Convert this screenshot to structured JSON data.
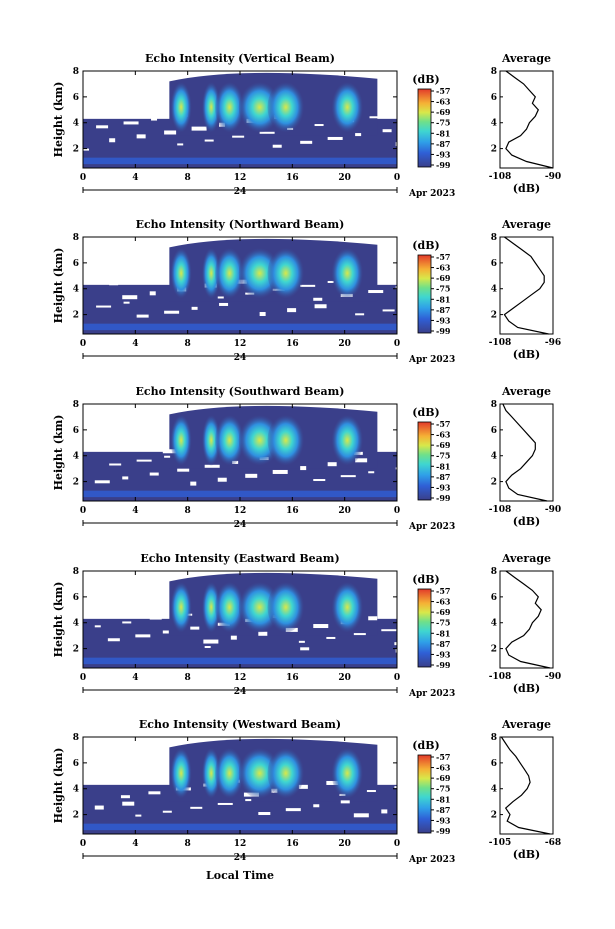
{
  "figure": {
    "xlabel": "Local Time",
    "date_label": "Apr 2023",
    "day_label": "24",
    "average_title": "Average",
    "average_xlabel": "(dB)",
    "colorbar_title": "(dB)",
    "colorbar_ticks": [
      "-57",
      "-63",
      "-69",
      "-75",
      "-81",
      "-87",
      "-93",
      "-99"
    ],
    "colors": {
      "background": "#3a3f8a",
      "low": "#3a3f8a",
      "mid": "#3fb0e0",
      "high": "#e23a2a"
    }
  },
  "chart_data": [
    {
      "type": "heatmap",
      "title": "Echo Intensity (Vertical Beam)",
      "ylabel": "Height (km)",
      "x_ticks": [
        "0",
        "4",
        "8",
        "12",
        "16",
        "20",
        "0"
      ],
      "y_ticks": [
        "2",
        "4",
        "6",
        "8"
      ],
      "xlim": [
        0,
        24
      ],
      "ylim": [
        0.5,
        8
      ],
      "profile": {
        "title": "Average",
        "xlabel": "(dB)",
        "xlim": [
          -108,
          -90
        ],
        "x_ticks": [
          "-108",
          "-90"
        ],
        "y_ticks": [
          "2",
          "4",
          "6",
          "8"
        ],
        "height": [
          0.5,
          1.0,
          1.5,
          2.0,
          2.5,
          3.0,
          3.5,
          4.0,
          4.5,
          5.0,
          5.5,
          6.0,
          6.5,
          7.0,
          7.5,
          8.0
        ],
        "value": [
          -90,
          -99,
          -104,
          -106,
          -105,
          -101,
          -99,
          -98,
          -96,
          -95,
          -97,
          -96,
          -98,
          -100,
          -103,
          -106
        ]
      }
    },
    {
      "type": "heatmap",
      "title": "Echo Intensity (Northward Beam)",
      "ylabel": "Height (km)",
      "x_ticks": [
        "0",
        "4",
        "8",
        "12",
        "16",
        "20",
        "0"
      ],
      "y_ticks": [
        "2",
        "4",
        "6",
        "8"
      ],
      "xlim": [
        0,
        24
      ],
      "ylim": [
        0.5,
        8
      ],
      "profile": {
        "title": "Average",
        "xlabel": "(dB)",
        "xlim": [
          -108,
          -96
        ],
        "x_ticks": [
          "-108",
          "-96"
        ],
        "y_ticks": [
          "2",
          "4",
          "6",
          "8"
        ],
        "height": [
          0.5,
          1.0,
          1.5,
          2.0,
          2.5,
          3.0,
          3.5,
          4.0,
          4.5,
          5.0,
          5.5,
          6.0,
          6.5,
          7.0,
          7.5,
          8.0
        ],
        "value": [
          -97,
          -104,
          -106,
          -107,
          -105,
          -103,
          -101,
          -99,
          -98,
          -98,
          -99,
          -100,
          -101,
          -103,
          -105,
          -107
        ]
      }
    },
    {
      "type": "heatmap",
      "title": "Echo Intensity (Southward Beam)",
      "ylabel": "Height (km)",
      "x_ticks": [
        "0",
        "4",
        "8",
        "12",
        "16",
        "20",
        "0"
      ],
      "y_ticks": [
        "2",
        "4",
        "6",
        "8"
      ],
      "xlim": [
        0,
        24
      ],
      "ylim": [
        0.5,
        8
      ],
      "profile": {
        "title": "Average",
        "xlabel": "(dB)",
        "xlim": [
          -108,
          -90
        ],
        "x_ticks": [
          "-108",
          "-90"
        ],
        "y_ticks": [
          "2",
          "4",
          "6",
          "8"
        ],
        "height": [
          0.5,
          1.0,
          1.5,
          2.0,
          2.5,
          3.0,
          3.5,
          4.0,
          4.5,
          5.0,
          5.5,
          6.0,
          6.5,
          7.0,
          7.5,
          8.0
        ],
        "value": [
          -92,
          -102,
          -105,
          -106,
          -104,
          -101,
          -99,
          -97,
          -96,
          -96,
          -98,
          -100,
          -102,
          -104,
          -106,
          -107
        ]
      }
    },
    {
      "type": "heatmap",
      "title": "Echo Intensity (Eastward Beam)",
      "ylabel": "Height (km)",
      "x_ticks": [
        "0",
        "4",
        "8",
        "12",
        "16",
        "20",
        "0"
      ],
      "y_ticks": [
        "2",
        "4",
        "6",
        "8"
      ],
      "xlim": [
        0,
        24
      ],
      "ylim": [
        0.5,
        8
      ],
      "profile": {
        "title": "Average",
        "xlabel": "(dB)",
        "xlim": [
          -108,
          -90
        ],
        "x_ticks": [
          "-108",
          "-90"
        ],
        "y_ticks": [
          "2",
          "4",
          "6",
          "8"
        ],
        "height": [
          0.5,
          1.0,
          1.5,
          2.0,
          2.5,
          3.0,
          3.5,
          4.0,
          4.5,
          5.0,
          5.5,
          6.0,
          6.5,
          7.0,
          7.5,
          8.0
        ],
        "value": [
          -91,
          -101,
          -105,
          -106,
          -104,
          -100,
          -98,
          -97,
          -95,
          -94,
          -96,
          -95,
          -97,
          -100,
          -103,
          -106
        ]
      }
    },
    {
      "type": "heatmap",
      "title": "Echo Intensity (Westward Beam)",
      "ylabel": "Height (km)",
      "x_ticks": [
        "0",
        "4",
        "8",
        "12",
        "16",
        "20",
        "0"
      ],
      "y_ticks": [
        "2",
        "4",
        "6",
        "8"
      ],
      "xlim": [
        0,
        24
      ],
      "ylim": [
        0.5,
        8
      ],
      "profile": {
        "title": "Average",
        "xlabel": "(dB)",
        "xlim": [
          -105,
          -68
        ],
        "x_ticks": [
          "-105",
          "-68"
        ],
        "y_ticks": [
          "2",
          "4",
          "6",
          "8"
        ],
        "height": [
          0.5,
          1.0,
          1.5,
          2.0,
          2.5,
          3.0,
          3.5,
          4.0,
          4.5,
          5.0,
          5.5,
          6.0,
          6.5,
          7.0,
          7.5,
          8.0
        ],
        "value": [
          -70,
          -92,
          -100,
          -98,
          -101,
          -96,
          -90,
          -86,
          -84,
          -85,
          -88,
          -91,
          -94,
          -98,
          -101,
          -104
        ]
      }
    }
  ]
}
